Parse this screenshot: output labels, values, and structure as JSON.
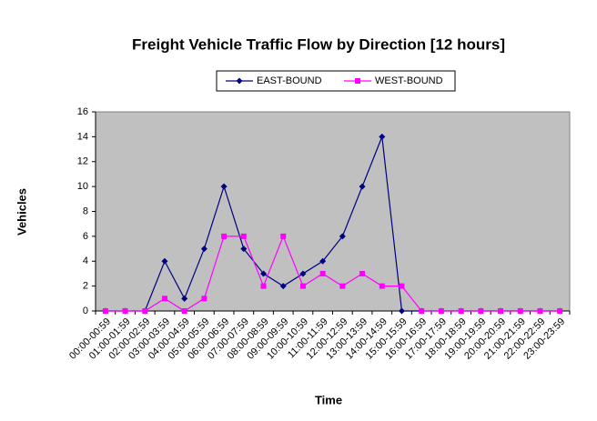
{
  "chart_data": {
    "type": "line",
    "title": "Freight Vehicle Traffic Flow by Direction [12 hours]",
    "x_label": "Time",
    "y_label": "Vehicles",
    "categories": [
      "00:00-00:59",
      "01:00-01:59",
      "02:00-02:59",
      "03:00-03:59",
      "04:00-04:59",
      "05:00-05:59",
      "06:00-06:59",
      "07:00-07:59",
      "08:00-08:59",
      "09:00-09:59",
      "10:00-10:59",
      "11:00-11:59",
      "12:00-12:59",
      "13:00-13:59",
      "14:00-14:59",
      "15:00-15:59",
      "16:00-16:59",
      "17:00-17:59",
      "18:00-18:59",
      "19:00-19:59",
      "20:00-20:59",
      "21:00-21:59",
      "22:00-22:59",
      "23:00-23:59"
    ],
    "series": [
      {
        "name": "EAST-BOUND",
        "color": "#000080",
        "marker": "diamond",
        "values": [
          0,
          0,
          0,
          4,
          1,
          5,
          10,
          5,
          3,
          2,
          3,
          4,
          6,
          10,
          14,
          0,
          0,
          0,
          0,
          0,
          0,
          0,
          0,
          0
        ]
      },
      {
        "name": "WEST-BOUND",
        "color": "#ff00ff",
        "marker": "square",
        "values": [
          0,
          0,
          0,
          1,
          0,
          1,
          6,
          6,
          2,
          6,
          2,
          3,
          2,
          3,
          2,
          2,
          0,
          0,
          0,
          0,
          0,
          0,
          0,
          0
        ]
      }
    ],
    "ylim": [
      0,
      16
    ],
    "yticks": [
      0,
      2,
      4,
      6,
      8,
      10,
      12,
      14,
      16
    ],
    "grid": false,
    "legend": "top",
    "plot_background": "#c0c0c0"
  }
}
